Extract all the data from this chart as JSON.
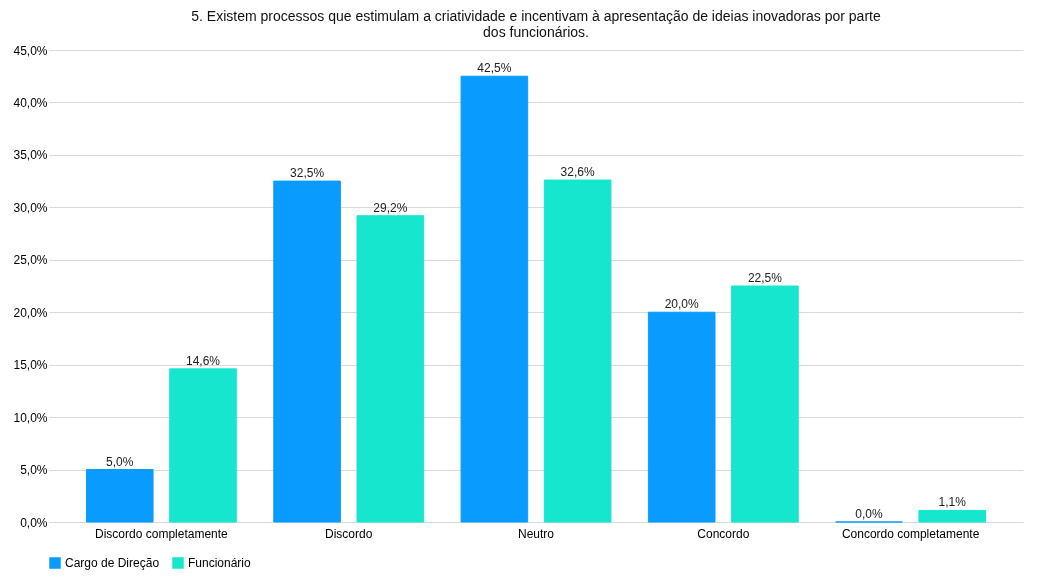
{
  "chart_data": {
    "type": "bar",
    "title": "5. Existem processos que estimulam a criatividade e incentivam à apresentação de ideias inovadoras por parte dos funcionários.",
    "categories": [
      "Discordo completamente",
      "Discordo",
      "Neutro",
      "Concordo",
      "Concordo completamente"
    ],
    "series": [
      {
        "name": "Cargo de Direção",
        "color": "#0a9bff",
        "values": [
          5.0,
          32.5,
          42.5,
          20.0,
          0.0
        ],
        "value_labels": [
          "5,0%",
          "32,5%",
          "42,5%",
          "20,0%",
          "0,0%"
        ]
      },
      {
        "name": "Funcionário",
        "color": "#17e6cf",
        "values": [
          14.6,
          29.2,
          32.6,
          22.5,
          1.1
        ],
        "value_labels": [
          "14,6%",
          "29,2%",
          "32,6%",
          "22,5%",
          "1,1%"
        ]
      }
    ],
    "ylim": [
      0,
      45
    ],
    "yticks": [
      {
        "value": 0,
        "label": "0,0%"
      },
      {
        "value": 5,
        "label": "5,0%"
      },
      {
        "value": 10,
        "label": "10,0%"
      },
      {
        "value": 15,
        "label": "15,0%"
      },
      {
        "value": 20,
        "label": "20,0%"
      },
      {
        "value": 25,
        "label": "25,0%"
      },
      {
        "value": 30,
        "label": "30,0%"
      },
      {
        "value": 35,
        "label": "35,0%"
      },
      {
        "value": 40,
        "label": "40,0%"
      },
      {
        "value": 45,
        "label": "45,0%"
      }
    ],
    "grid": "y",
    "legend": "bottom"
  }
}
